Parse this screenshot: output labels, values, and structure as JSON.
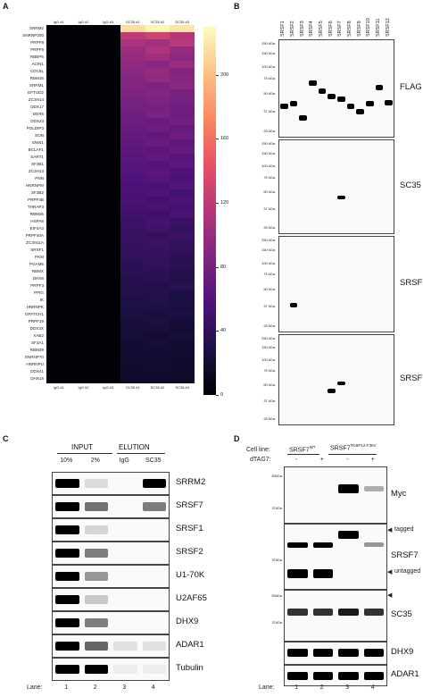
{
  "panels": {
    "a": "A",
    "b": "B",
    "c": "C",
    "d": "D"
  },
  "heatmap": {
    "columns": [
      "IgG #1",
      "IgG #2",
      "IgG #3",
      "SC35 #1",
      "SC35 #2",
      "SC35 #3"
    ],
    "rows": [
      "SRRM2",
      "SNRNP200",
      "PRPF8",
      "PRPF6",
      "RBBP6",
      "ACIN1",
      "CDC5L",
      "RBM15",
      "SRRM1",
      "EFTUD2",
      "ZC3H14",
      "DDX17",
      "DDX5",
      "DDX23",
      "POLDIP3",
      "SON",
      "SNW1",
      "BCLAF1",
      "SART1",
      "SF3B1",
      "ZC3H13",
      "PNN",
      "HNRNPM",
      "SF3B2",
      "PRPF4B",
      "THRAP3",
      "RBM25",
      "HSPA8",
      "EIF4A3",
      "PRPF40A",
      "ZC3H11A",
      "SRSF1",
      "PKM",
      "PGAM5",
      "RBMX",
      "DHX8",
      "PRPF3",
      "PPIG",
      "IK",
      "HNRNPK",
      "GPATCH1",
      "PRPF19",
      "DDX3X",
      "XAB2",
      "SF3A1",
      "RBM39",
      "SNRNP70",
      "HNRNPU",
      "DDX41",
      "DHX15"
    ],
    "colorbar_ticks": [
      "200",
      "160",
      "120",
      "80",
      "40",
      "0"
    ]
  },
  "chart_data": {
    "type": "heatmap",
    "x": [
      "IgG #1",
      "IgG #2",
      "IgG #3",
      "SC35 #1",
      "SC35 #2",
      "SC35 #3"
    ],
    "y": [
      "SRRM2",
      "SNRNP200",
      "PRPF8",
      "PRPF6",
      "RBBP6",
      "ACIN1",
      "CDC5L",
      "RBM15",
      "SRRM1",
      "EFTUD2",
      "ZC3H14",
      "DDX17",
      "DDX5",
      "DDX23",
      "POLDIP3",
      "SON",
      "SNW1",
      "BCLAF1",
      "SART1",
      "SF3B1",
      "ZC3H13",
      "PNN",
      "HNRNPM",
      "SF3B2",
      "PRPF4B",
      "THRAP3",
      "RBM25",
      "HSPA8",
      "EIF4A3",
      "PRPF40A",
      "ZC3H11A",
      "SRSF1",
      "PKM",
      "PGAM5",
      "RBMX",
      "DHX8",
      "PRPF3",
      "PPIG",
      "IK",
      "HNRNPK",
      "GPATCH1",
      "PRPF19",
      "DDX3X",
      "XAB2",
      "SF3A1",
      "RBM39",
      "SNRNP70",
      "HNRNPU",
      "DDX41",
      "DHX15"
    ],
    "scale_range": [
      0,
      230
    ],
    "colormap": "magma",
    "colorbar_ticks": [
      0,
      40,
      80,
      120,
      160,
      200
    ],
    "sc35_values": [
      [
        215,
        225,
        218
      ],
      [
        120,
        130,
        115
      ],
      [
        110,
        105,
        118
      ],
      [
        100,
        112,
        96
      ],
      [
        98,
        104,
        92
      ],
      [
        95,
        90,
        100
      ],
      [
        92,
        96,
        88
      ],
      [
        88,
        95,
        90
      ],
      [
        86,
        84,
        92
      ],
      [
        84,
        88,
        80
      ],
      [
        80,
        84,
        78
      ],
      [
        78,
        80,
        76
      ],
      [
        76,
        82,
        74
      ],
      [
        74,
        72,
        78
      ],
      [
        72,
        76,
        70
      ],
      [
        70,
        68,
        74
      ],
      [
        68,
        72,
        66
      ],
      [
        66,
        64,
        70
      ],
      [
        64,
        68,
        62
      ],
      [
        62,
        60,
        66
      ],
      [
        60,
        64,
        58
      ],
      [
        58,
        62,
        56
      ],
      [
        56,
        54,
        60
      ],
      [
        55,
        58,
        52
      ],
      [
        54,
        50,
        56
      ],
      [
        52,
        54,
        50
      ],
      [
        50,
        48,
        54
      ],
      [
        48,
        52,
        46
      ],
      [
        46,
        50,
        44
      ],
      [
        45,
        42,
        48
      ],
      [
        44,
        46,
        40
      ],
      [
        42,
        44,
        40
      ],
      [
        40,
        42,
        38
      ],
      [
        38,
        40,
        36
      ],
      [
        36,
        38,
        34
      ],
      [
        35,
        36,
        32
      ],
      [
        34,
        32,
        36
      ],
      [
        32,
        34,
        30
      ],
      [
        30,
        32,
        28
      ],
      [
        29,
        30,
        27
      ],
      [
        28,
        26,
        30
      ],
      [
        26,
        28,
        24
      ],
      [
        25,
        26,
        23
      ],
      [
        24,
        22,
        25
      ],
      [
        22,
        24,
        20
      ],
      [
        21,
        22,
        20
      ],
      [
        20,
        21,
        19
      ],
      [
        19,
        20,
        18
      ],
      [
        18,
        19,
        17
      ],
      [
        17,
        18,
        16
      ]
    ]
  },
  "panel_b": {
    "lanes": [
      "SRSF1",
      "SRSF2",
      "SRSF3",
      "SRSF4",
      "SRSF5",
      "SRSF6",
      "SRSF7",
      "SRSF8",
      "SRSF9",
      "SRSF10",
      "SRSF11",
      "SRSF12"
    ],
    "blot_labels": [
      "FLAG",
      "SC35",
      "SRSF2",
      "SRSF7"
    ],
    "mw": [
      [
        "250 kDa",
        "150 kDa",
        "100 kDa",
        "75 kDa",
        "50 kDa",
        "37 kDa",
        "25 kDa"
      ],
      [
        "250 kDa",
        "150 kDa",
        "100 kDa",
        "75 kDa",
        "50 kDa",
        "37 kDa",
        "25 kDa"
      ],
      [
        "250 kDa",
        "150 kDa",
        "100 kDa",
        "75 kDa",
        "50 kDa",
        "37 kDa",
        "25 kDa"
      ],
      [
        "250 kDa",
        "150 kDa",
        "100 kDa",
        "75 kDa",
        "50 kDa",
        "37 kDa",
        "25 kDa"
      ]
    ]
  },
  "panel_c": {
    "input_label": "INPUT",
    "elution_label": "ELUTION",
    "cols": [
      "10%",
      "2%",
      "IgG",
      "SC35"
    ],
    "blots": [
      "SRRM2",
      "SRSF7",
      "SRSF1",
      "SRSF2",
      "U1-70K",
      "U2AF65",
      "DHX9",
      "ADAR1",
      "Tubulin"
    ],
    "lane_label": "Lane:",
    "lanes": [
      "1",
      "2",
      "3",
      "4"
    ]
  },
  "panel_d": {
    "cell_line_label": "Cell line:",
    "line1": "SRSF7",
    "line1_sup": "WT",
    "line2": "SRSF7",
    "line2_sup": "FKBP12-F36V",
    "dtag_label": "dTAG7:",
    "dtag": [
      "-",
      "+",
      "-",
      "+"
    ],
    "blots": [
      "Myc",
      "SRSF7",
      "SC35",
      "DHX9",
      "ADAR1"
    ],
    "mw_myc": [
      "50kDa",
      "37kDa"
    ],
    "mw_srsf7": "37kDa",
    "mw_sc35": [
      "50kDa",
      "37kDa"
    ],
    "tagged": "tagged",
    "untagged": "untagged",
    "lane_label": "Lane:",
    "lanes": [
      "1",
      "2",
      "3",
      "4"
    ]
  }
}
